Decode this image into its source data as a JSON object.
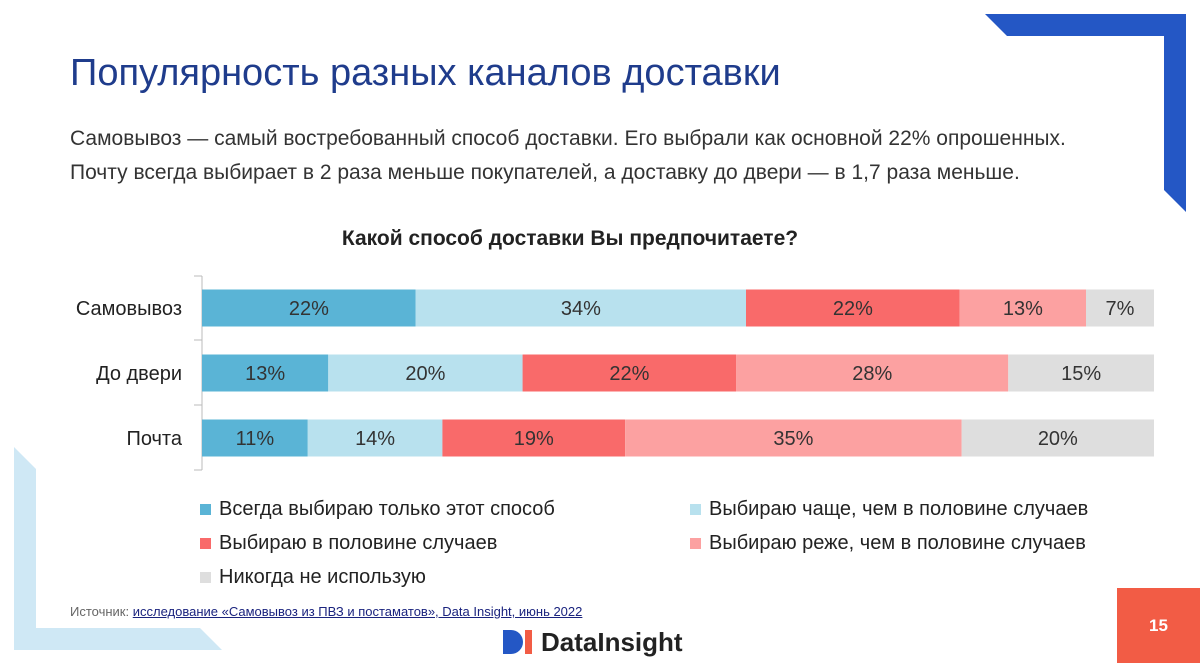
{
  "title": "Популярность разных каналов доставки",
  "subtitle": {
    "line1": "Самовывоз — самый востребованный способ доставки. Его выбрали как основной 22% опрошенных.",
    "line2": "Почту всегда выбирает в 2 раза меньше покупателей, а доставку до двери — в 1,7 раза меньше."
  },
  "chart_data": {
    "type": "bar",
    "orientation": "horizontal",
    "stacked": true,
    "title": "Какой способ доставки Вы предпочитаете?",
    "categories": [
      "Самовывоз",
      "До двери",
      "Почта"
    ],
    "series": [
      {
        "name": "Всегда выбираю только этот способ",
        "color": "#5ab4d6",
        "values": [
          22,
          13,
          11
        ]
      },
      {
        "name": "Выбираю чаще, чем в половине случаев",
        "color": "#b8e1ee",
        "values": [
          34,
          20,
          14
        ]
      },
      {
        "name": "Выбираю в половине случаев",
        "color": "#f96a6a",
        "values": [
          22,
          22,
          19
        ]
      },
      {
        "name": "Выбираю реже, чем в половине случаев",
        "color": "#fca1a1",
        "values": [
          13,
          28,
          35
        ]
      },
      {
        "name": "Никогда не использую",
        "color": "#dedede",
        "values": [
          7,
          15,
          20
        ]
      }
    ],
    "value_suffix": "%",
    "legend_position": "bottom"
  },
  "source": {
    "prefix": "Источник:",
    "link_text": "исследование «Самовывоз из ПВЗ и постаматов», Data Insight, июнь 2022"
  },
  "logo": {
    "text": "DataInsight"
  },
  "page_number": "15",
  "colors": {
    "title": "#1f3c8c",
    "accent_blue": "#2457c5",
    "light_blue": "#cfe8f5",
    "page_badge": "#f25c45"
  }
}
